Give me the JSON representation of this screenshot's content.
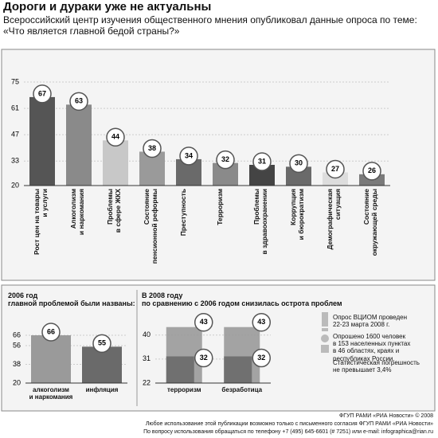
{
  "title": "Дороги и дураки уже не актуальны",
  "subtitle": "Всероссийский центр изучения общественного мнения опубликовал данные опроса по теме: «Что является главной бедой страны?»",
  "chart_data": [
    {
      "type": "bar",
      "categories": [
        "Рост цен на товары\nи услуги",
        "Алкоголизм\nи наркомания",
        "Проблемы\nв сфере ЖКХ",
        "Состояние\nпенсионной реформы",
        "Преступность",
        "Терроризм",
        "Проблемы\nв здравоохранении",
        "Коррупция\nи бюрократизм",
        "Демографическая\nситуация",
        "Состояние\nокружающей среды"
      ],
      "values": [
        67,
        63,
        44,
        38,
        34,
        32,
        31,
        30,
        27,
        26
      ],
      "colors": [
        "#555555",
        "#8a8a8a",
        "#c8c8c8",
        "#9a9a9a",
        "#6a6a6a",
        "#8a8a8a",
        "#444444",
        "#6a6a6a",
        "#dddddd",
        "#7a7a7a"
      ],
      "ylim": [
        20,
        75
      ],
      "yticks": [
        20,
        33,
        47,
        61,
        75
      ]
    },
    {
      "type": "bar",
      "title": "2006 год\nглавной проблемой были названы:",
      "categories": [
        "алкоголизм\nи наркомания",
        "инфляция"
      ],
      "values": [
        66,
        55
      ],
      "colors": [
        "#9a9a9a",
        "#6a6a6a"
      ],
      "ylim": [
        20,
        66
      ],
      "yticks": [
        20,
        38,
        56,
        66
      ]
    },
    {
      "type": "overlay-bar",
      "title": "В 2008 году\nпо сравнению с 2006 годом снизилась острота проблем",
      "categories": [
        "терроризм",
        "безработица"
      ],
      "series": [
        {
          "color": "#9a9a9a",
          "values": [
            43,
            43
          ]
        },
        {
          "color": "#6a6a6a",
          "values": [
            32,
            32
          ]
        }
      ],
      "ylim": [
        22,
        45
      ],
      "yticks": [
        22,
        31,
        40
      ]
    }
  ],
  "note": [
    "Опрос ВЦИОМ проведен\n22-23 марта 2008 г.",
    "Опрошено 1600 человек\nв 153 населенных пунктах\nв 46 областях, краях и республиках России.",
    "Статистическая погрешность\nне превышает 3,4%"
  ],
  "footer": [
    "ФГУП РАМИ «РИА Новости» © 2008",
    "Любое использование этой публикации возможно только с письменного согласия ФГУП РАМИ «РИА Новости»",
    "По вопросу использования обращаться по телефону +7 (495) 645-6601 (# 7251) или e-mail: infographica@rian.ru"
  ]
}
